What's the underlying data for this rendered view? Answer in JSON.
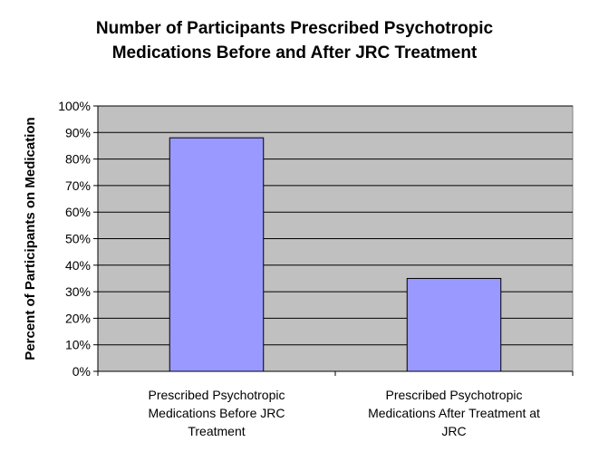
{
  "chart_data": {
    "type": "bar",
    "title_lines": [
      "Number of Participants Prescribed Psychotropic",
      "Medications Before and After JRC Treatment"
    ],
    "ylabel": "Percent of Participants on Medication",
    "xlabel": "",
    "categories": [
      [
        "Prescribed Psychotropic",
        "Medications Before JRC",
        "Treatment"
      ],
      [
        "Prescribed Psychotropic",
        "Medications After Treatment at",
        "JRC"
      ]
    ],
    "values": [
      88,
      35
    ],
    "y_tick_labels": [
      "0%",
      "10%",
      "20%",
      "30%",
      "40%",
      "50%",
      "60%",
      "70%",
      "80%",
      "90%",
      "100%"
    ],
    "ylim": [
      0,
      100
    ],
    "grid": true,
    "legend": "none",
    "colors": {
      "bar": "#9999ff",
      "plot_background": "#c0c0c0",
      "grid": "#000000"
    }
  }
}
